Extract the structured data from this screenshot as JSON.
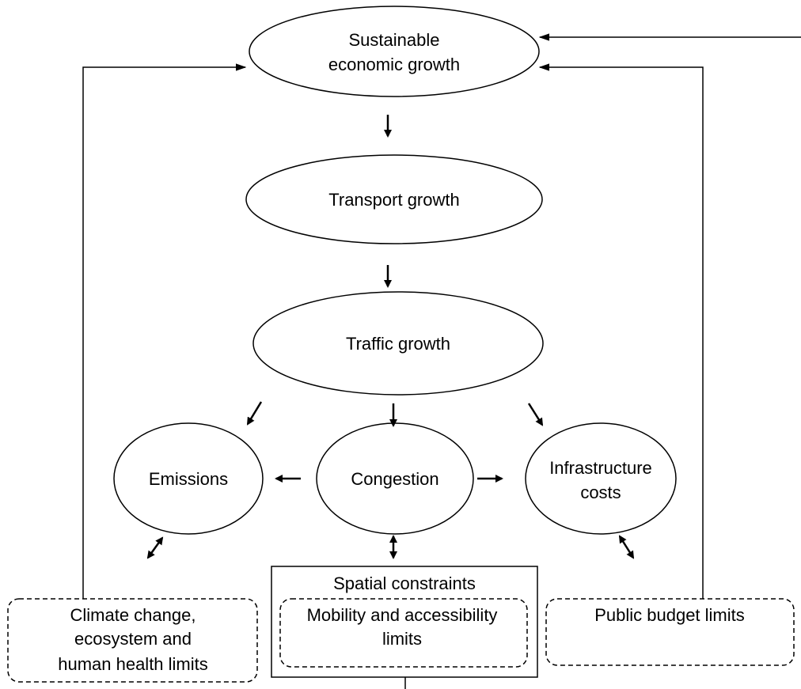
{
  "nodes": [
    {
      "lines": [
        "Sustainable",
        "economic growth"
      ]
    },
    {
      "lines": [
        "Transport growth"
      ]
    },
    {
      "lines": [
        "Traffic growth"
      ]
    },
    {
      "lines": [
        "Emissions"
      ]
    },
    {
      "lines": [
        "Congestion"
      ]
    },
    {
      "lines": [
        "Infrastructure",
        "costs"
      ]
    }
  ],
  "limits": [
    {
      "lines": [
        "Climate change,",
        "ecosystem and",
        "human health limits"
      ]
    },
    {
      "title": "Spatial constraints",
      "lines": [
        "Mobility and accessibility",
        "limits"
      ]
    },
    {
      "lines": [
        "Public budget limits"
      ]
    }
  ]
}
